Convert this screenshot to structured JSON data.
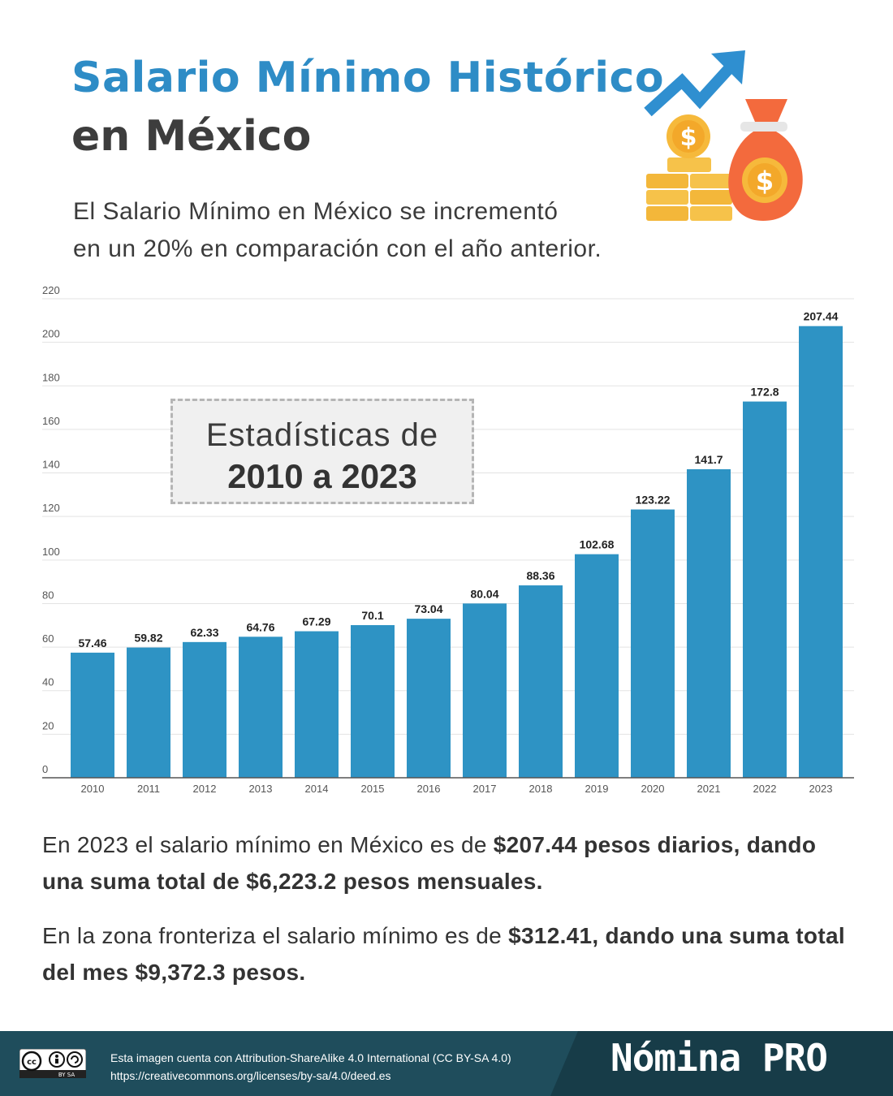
{
  "header": {
    "title_line1": "Salario Mínimo Histórico",
    "title_line2": "en México",
    "subtitle_line1": "El Salario Mínimo en México se incrementó",
    "subtitle_line2": "en un 20% en comparación con el año anterior."
  },
  "hero_icons": [
    "trend-up-arrow-icon",
    "coin-stack-icon",
    "money-bag-icon"
  ],
  "stats_box": {
    "line1": "Estadísticas de",
    "line2": "2010 a 2023"
  },
  "chart_data": {
    "type": "bar",
    "categories": [
      "2010",
      "2011",
      "2012",
      "2013",
      "2014",
      "2015",
      "2016",
      "2017",
      "2018",
      "2019",
      "2020",
      "2021",
      "2022",
      "2023"
    ],
    "values": [
      57.46,
      59.82,
      62.33,
      64.76,
      67.29,
      70.1,
      73.04,
      80.04,
      88.36,
      102.68,
      123.22,
      141.7,
      172.8,
      207.44
    ],
    "data_labels": [
      "57.46",
      "59.82",
      "62.33",
      "64.76",
      "67.29",
      "70.1",
      "73.04",
      "80.04",
      "88.36",
      "102.68",
      "123.22",
      "141.7",
      "172.8",
      "207.44"
    ],
    "yticks": [
      0,
      20,
      40,
      60,
      80,
      100,
      120,
      140,
      160,
      180,
      200,
      220
    ],
    "ylim": [
      0,
      220
    ],
    "grid": true,
    "bar_color": "#2e93c4"
  },
  "paragraph1": {
    "text_regular": "En 2023 el salario mínimo en México es de ",
    "text_bold": "$207.44 pesos diarios, dando una suma total de $6,223.2 pesos mensuales."
  },
  "paragraph2": {
    "text_regular": "En la zona fronteriza el salario mínimo es de ",
    "text_bold": "$312.41, dando una suma total del mes $9,372.3 pesos."
  },
  "footer": {
    "cc_badge_text": "BY SA",
    "license_line1": "Esta imagen cuenta con Attribution-ShareAlike 4.0 International (CC BY-SA 4.0)",
    "license_line2": "https://creativecommons.org/licenses/by-sa/4.0/deed.es",
    "brand": "Nómina PRO"
  },
  "colors": {
    "title_blue": "#2e8cc6",
    "bar_blue": "#2e93c4",
    "footer_dark": "#1f4d5c",
    "footer_darker": "#173c48",
    "money_orange": "#f36a3d",
    "coin_yellow": "#f6b93b"
  }
}
